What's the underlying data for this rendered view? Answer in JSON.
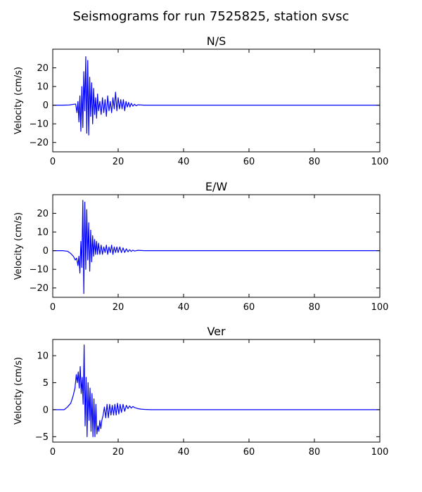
{
  "figure": {
    "title": "Seismograms for run 7525825, station svsc"
  },
  "chart_data": [
    {
      "type": "line",
      "title": "N/S",
      "xlabel": "",
      "ylabel": "Velocity (cm/s)",
      "xlim": [
        0,
        100
      ],
      "ylim": [
        -25,
        30
      ],
      "xticks": [
        0,
        20,
        40,
        60,
        80,
        100
      ],
      "yticks": [
        -20,
        -10,
        0,
        10,
        20
      ],
      "grid": false,
      "color": "#0000ff",
      "series": [
        {
          "x": [
            0,
            3,
            5,
            6.5,
            7.0,
            7.4,
            7.7,
            8.0,
            8.3,
            8.6,
            8.9,
            9.2,
            9.5,
            9.8,
            10.1,
            10.4,
            10.7,
            11.0,
            11.3,
            11.6,
            11.9,
            12.2,
            12.5,
            12.8,
            13.1,
            13.4,
            13.7,
            14.0,
            14.4,
            14.8,
            15.2,
            15.6,
            16.0,
            16.4,
            16.8,
            17.2,
            17.6,
            18.0,
            18.4,
            18.8,
            19.2,
            19.6,
            20.0,
            20.4,
            20.8,
            21.2,
            21.6,
            22.0,
            22.4,
            22.8,
            23.2,
            23.6,
            24.0,
            24.5,
            25.0,
            25.5,
            26.0,
            27.0,
            28.0,
            30.0,
            40.0,
            60.0,
            80.0,
            100.0
          ],
          "y": [
            0,
            0,
            0.1,
            0.5,
            0.6,
            -4,
            2,
            -9,
            5,
            -14,
            10,
            -12,
            18,
            -3,
            26,
            -15,
            24,
            -16,
            15,
            -6,
            12,
            -10,
            9,
            -5,
            4,
            -7,
            6,
            -3,
            2,
            -5,
            4,
            -4,
            3,
            -6,
            5,
            -3,
            2,
            -4,
            4,
            -2,
            7,
            -3,
            4,
            -2,
            3,
            -2,
            3,
            -3,
            2,
            -1,
            1.5,
            -1,
            1,
            -0.5,
            0.5,
            -0.3,
            0.2,
            0.1,
            0,
            0,
            0,
            0,
            0,
            0
          ]
        }
      ]
    },
    {
      "type": "line",
      "title": "E/W",
      "xlabel": "",
      "ylabel": "Velocity (cm/s)",
      "xlim": [
        0,
        100
      ],
      "ylim": [
        -25,
        30
      ],
      "xticks": [
        0,
        20,
        40,
        60,
        80,
        100
      ],
      "yticks": [
        -20,
        -10,
        0,
        10,
        20
      ],
      "grid": false,
      "color": "#0000ff",
      "series": [
        {
          "x": [
            0,
            3,
            4.5,
            5.5,
            6.3,
            6.9,
            7.3,
            7.7,
            8.0,
            8.3,
            8.6,
            8.9,
            9.2,
            9.5,
            9.8,
            10.1,
            10.4,
            10.7,
            11.0,
            11.3,
            11.6,
            11.9,
            12.2,
            12.5,
            12.8,
            13.1,
            13.4,
            13.7,
            14.0,
            14.4,
            14.8,
            15.2,
            15.6,
            16.0,
            16.4,
            16.8,
            17.2,
            17.6,
            18.0,
            18.4,
            18.8,
            19.2,
            19.6,
            20.0,
            20.5,
            21.0,
            21.5,
            22.0,
            22.5,
            23.0,
            23.5,
            24.0,
            24.5,
            25.0,
            26.0,
            27.0,
            28.0,
            30.0,
            40.0,
            60.0,
            80.0,
            100.0
          ],
          "y": [
            0,
            0,
            -0.3,
            -1.5,
            -3,
            -5,
            -4,
            -8,
            -3,
            -12,
            5,
            -9,
            27,
            -23,
            26,
            -10,
            22,
            -5,
            15,
            -11,
            11,
            -6,
            8,
            -3,
            6,
            -2,
            5,
            -2,
            4,
            -2,
            3,
            -2,
            2,
            -1,
            3,
            -2,
            2,
            -1,
            3,
            -2,
            2,
            -1,
            2,
            -1,
            2,
            -1,
            1.5,
            -1,
            1,
            -0.6,
            0.5,
            -0.4,
            0.3,
            -0.2,
            0.2,
            0.1,
            0,
            0,
            0,
            0,
            0,
            0
          ]
        }
      ]
    },
    {
      "type": "line",
      "title": "Ver",
      "xlabel": "",
      "ylabel": "Velocity (cm/s)",
      "xlim": [
        0,
        100
      ],
      "ylim": [
        -6,
        13
      ],
      "xticks": [
        0,
        20,
        40,
        60,
        80,
        100
      ],
      "yticks": [
        -5,
        0,
        5,
        10
      ],
      "grid": false,
      "color": "#0000ff",
      "series": [
        {
          "x": [
            0,
            3.5,
            4.5,
            5.5,
            6.2,
            6.8,
            7.2,
            7.5,
            7.8,
            8.1,
            8.4,
            8.7,
            9.0,
            9.3,
            9.6,
            9.9,
            10.2,
            10.5,
            10.8,
            11.1,
            11.4,
            11.7,
            12.0,
            12.3,
            12.6,
            12.9,
            13.2,
            13.5,
            13.8,
            14.1,
            14.4,
            14.7,
            15.0,
            15.4,
            15.8,
            16.2,
            16.6,
            17.0,
            17.4,
            17.8,
            18.2,
            18.6,
            19.0,
            19.4,
            19.8,
            20.2,
            20.6,
            21.0,
            21.5,
            22.0,
            22.5,
            23.0,
            23.5,
            24.0,
            24.5,
            25.0,
            25.5,
            26.0,
            27.0,
            28.0,
            30.0,
            40.0,
            60.0,
            80.0,
            100.0
          ],
          "y": [
            0,
            0,
            0.5,
            1.2,
            2.5,
            4,
            6.5,
            5,
            7,
            4,
            8,
            3,
            6,
            1,
            12,
            -3,
            6,
            -5,
            5,
            -2,
            4,
            -4,
            3,
            -5,
            2,
            -5,
            1,
            -4.5,
            -3,
            -4,
            -2,
            -3.5,
            -2,
            -1,
            0.5,
            -1.5,
            1,
            -1.5,
            1,
            -1,
            0.8,
            -1,
            1,
            -1,
            1.2,
            -0.8,
            1,
            -0.5,
            1,
            -0.3,
            0.8,
            0.2,
            0.7,
            0.3,
            0.6,
            0.4,
            0.3,
            0.2,
            0.1,
            0.05,
            0,
            0,
            0,
            0,
            0
          ]
        }
      ]
    }
  ]
}
